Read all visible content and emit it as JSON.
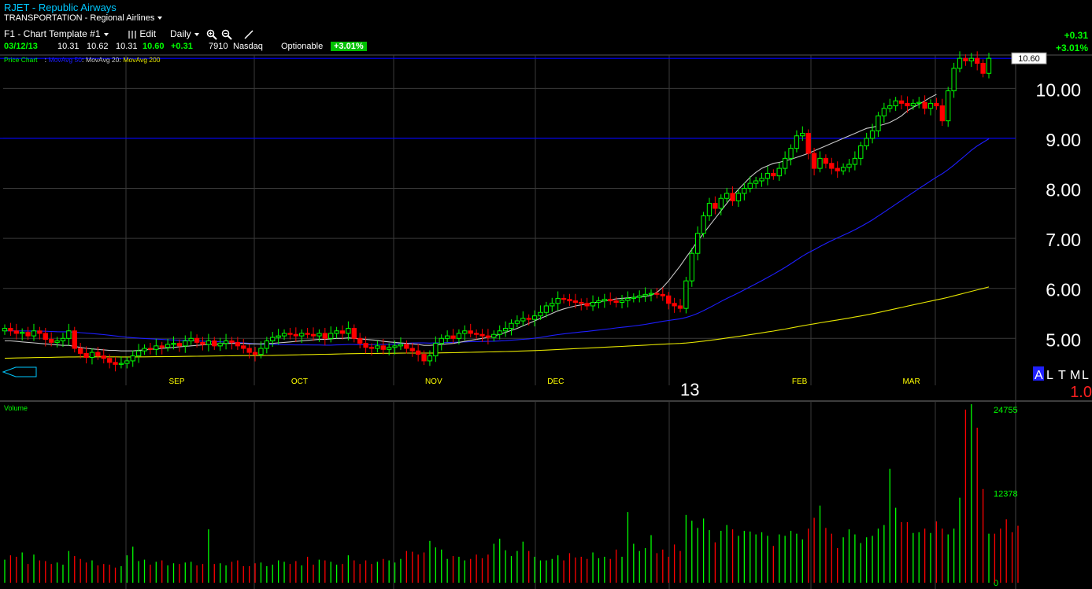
{
  "header": {
    "symbol_title": "RJET - Republic Airways",
    "industry": "TRANSPORTATION - Regional Airlines",
    "template": "F1 - Chart Template #1",
    "edit": "Edit",
    "period": "Daily",
    "change": "+0.31",
    "change_pct": "+3.01%"
  },
  "quote": {
    "date": "03/12/13",
    "open": "10.31",
    "high": "10.62",
    "low": "10.31",
    "close": "10.60",
    "change": "+0.31",
    "volume": "7910",
    "exchange": "Nasdaq",
    "optionable": "Optionable",
    "badge": "+3.01%"
  },
  "colors": {
    "up": "#00ff00",
    "down": "#ff0000",
    "ma50": "#1e1eff",
    "ma20": "#c8c8c8",
    "ma200": "#e6e600",
    "grid": "#3a3a3a",
    "hline": "#0000ff"
  },
  "chart_data": [
    {
      "type": "candlestick",
      "legend": [
        "Price Chart",
        "MovAvg 50",
        "MovAvg 20",
        "MovAvg 200"
      ],
      "ylim": [
        4.25,
        10.65
      ],
      "yticks": [
        "5.00",
        "6.00",
        "7.00",
        "8.00",
        "9.00",
        "10.00"
      ],
      "last_price_label": "10.60",
      "xlabels": [
        {
          "label": "SEP",
          "index": 29
        },
        {
          "label": "OCT",
          "index": 50
        },
        {
          "label": "NOV",
          "index": 73
        },
        {
          "label": "DEC",
          "index": 94
        },
        {
          "label": "13",
          "index": 116
        },
        {
          "label": "FEB",
          "index": 136
        },
        {
          "label": "MAR",
          "index": 155
        }
      ],
      "horizontal_lines": [
        10.6,
        9.0
      ],
      "timeframes": [
        "A",
        "L",
        "T",
        "M",
        "L"
      ],
      "scale_text": "1.0",
      "closes": [
        5.2,
        5.15,
        5.1,
        5.12,
        5.05,
        5.15,
        5.1,
        4.98,
        4.92,
        4.95,
        5.0,
        5.15,
        4.8,
        4.7,
        4.62,
        4.72,
        4.65,
        4.6,
        4.52,
        4.48,
        4.5,
        4.55,
        4.65,
        4.75,
        4.8,
        4.78,
        4.85,
        4.82,
        4.88,
        4.9,
        4.85,
        4.95,
        5.0,
        4.92,
        4.88,
        4.95,
        4.85,
        4.9,
        4.95,
        4.92,
        4.85,
        4.8,
        4.72,
        4.68,
        4.8,
        4.95,
        5.02,
        5.05,
        5.1,
        5.08,
        5.05,
        5.1,
        5.08,
        5.05,
        5.1,
        5.0,
        5.1,
        5.15,
        5.1,
        5.2,
        5.0,
        4.9,
        4.82,
        4.8,
        4.85,
        4.78,
        4.82,
        4.85,
        4.88,
        4.8,
        4.75,
        4.68,
        4.55,
        4.65,
        4.9,
        5.0,
        5.05,
        5.0,
        5.1,
        5.15,
        5.1,
        5.08,
        5.05,
        5.02,
        5.08,
        5.15,
        5.2,
        5.3,
        5.35,
        5.4,
        5.38,
        5.45,
        5.52,
        5.65,
        5.7,
        5.8,
        5.78,
        5.75,
        5.72,
        5.7,
        5.65,
        5.72,
        5.75,
        5.78,
        5.75,
        5.72,
        5.76,
        5.8,
        5.82,
        5.85,
        5.88,
        5.9,
        5.88,
        5.85,
        5.7,
        5.65,
        5.6,
        6.15,
        6.7,
        7.1,
        7.45,
        7.7,
        7.6,
        7.8,
        7.9,
        7.75,
        7.9,
        8.0,
        8.1,
        8.15,
        8.2,
        8.3,
        8.25,
        8.4,
        8.6,
        8.8,
        9.05,
        9.1,
        8.7,
        8.4,
        8.6,
        8.5,
        8.4,
        8.35,
        8.42,
        8.48,
        8.6,
        8.85,
        9.0,
        9.15,
        9.45,
        9.6,
        9.65,
        9.75,
        9.7,
        9.65,
        9.7,
        9.72,
        9.6,
        9.7,
        9.65,
        9.35,
        9.95,
        10.4,
        10.6,
        10.55,
        10.6,
        10.5,
        10.3,
        10.6
      ],
      "ma20": [
        4.95,
        4.95,
        4.94,
        4.93,
        4.92,
        4.91,
        4.9,
        4.89,
        4.88,
        4.87,
        4.86,
        4.86,
        4.84,
        4.82,
        4.8,
        4.79,
        4.78,
        4.77,
        4.76,
        4.76,
        4.75,
        4.75,
        4.75,
        4.76,
        4.77,
        4.78,
        4.79,
        4.8,
        4.81,
        4.82,
        4.83,
        4.84,
        4.85,
        4.86,
        4.87,
        4.88,
        4.88,
        4.89,
        4.9,
        4.9,
        4.9,
        4.9,
        4.89,
        4.89,
        4.89,
        4.9,
        4.9,
        4.91,
        4.92,
        4.93,
        4.94,
        4.95,
        4.96,
        4.97,
        4.98,
        4.98,
        4.99,
        5.0,
        5.0,
        5.01,
        5.0,
        4.99,
        4.98,
        4.97,
        4.96,
        4.94,
        4.93,
        4.92,
        4.91,
        4.9,
        4.89,
        4.88,
        4.86,
        4.86,
        4.87,
        4.88,
        4.89,
        4.9,
        4.92,
        4.94,
        4.96,
        4.98,
        5.0,
        5.02,
        5.05,
        5.08,
        5.12,
        5.16,
        5.2,
        5.25,
        5.3,
        5.35,
        5.4,
        5.45,
        5.5,
        5.55,
        5.59,
        5.62,
        5.65,
        5.67,
        5.69,
        5.71,
        5.73,
        5.75,
        5.77,
        5.79,
        5.8,
        5.81,
        5.82,
        5.83,
        5.84,
        5.86,
        5.92,
        6.02,
        6.15,
        6.3,
        6.45,
        6.62,
        6.78,
        6.95,
        7.1,
        7.25,
        7.4,
        7.55,
        7.7,
        7.85,
        7.98,
        8.1,
        8.22,
        8.32,
        8.4,
        8.45,
        8.5,
        8.52,
        8.55,
        8.58,
        8.62,
        8.66,
        8.7,
        8.75,
        8.8,
        8.85,
        8.9,
        8.95,
        9.0,
        9.05,
        9.1,
        9.15,
        9.2,
        9.22,
        9.25,
        9.28,
        9.32,
        9.38,
        9.45,
        9.55,
        9.62,
        9.68,
        9.75,
        9.82,
        9.88
      ]
    },
    {
      "type": "bar",
      "title": "Volume",
      "ylim": [
        0,
        24755
      ],
      "yticks": [
        "0",
        "12378",
        "24755"
      ],
      "values": [
        3200,
        3800,
        3600,
        4200,
        2600,
        3900,
        3100,
        3000,
        2600,
        2800,
        2500,
        4400,
        3700,
        3300,
        2800,
        3100,
        2400,
        2600,
        2500,
        2100,
        2300,
        3800,
        5000,
        3000,
        3200,
        2500,
        2900,
        3100,
        2400,
        2700,
        2600,
        2800,
        2900,
        2400,
        2600,
        7400,
        2600,
        2700,
        2400,
        2900,
        3100,
        2300,
        2300,
        2700,
        2800,
        2300,
        2500,
        3100,
        2900,
        2600,
        3000,
        2400,
        3600,
        2500,
        3200,
        3100,
        2900,
        2500,
        2600,
        3800,
        3100,
        2600,
        3100,
        2600,
        2900,
        3300,
        3100,
        2800,
        3300,
        4400,
        4300,
        3900,
        4200,
        5800,
        4900,
        4600,
        3300,
        3700,
        3600,
        3100,
        3300,
        3900,
        3400,
        3900,
        5400,
        6100,
        4500,
        3700,
        4400,
        5700,
        4400,
        3600,
        3100,
        3100,
        3300,
        3800,
        3100,
        4100,
        3500,
        3600,
        3300,
        4200,
        3400,
        3600,
        3300,
        4600,
        3600,
        9800,
        5400,
        4400,
        4800,
        6600,
        4100,
        4600,
        3600,
        5300,
        4400,
        9400,
        8600,
        7600,
        8900,
        7300,
        5600,
        7200,
        8000,
        7400,
        6500,
        7200,
        7100,
        6700,
        7000,
        6500,
        5100,
        6700,
        6500,
        7200,
        6800,
        6000,
        7500,
        9000,
        10700,
        7600,
        6800,
        4800,
        6300,
        7400,
        6700,
        5500,
        6300,
        6500,
        7500,
        8000,
        15800,
        10400,
        8400,
        8400,
        6900,
        7000,
        7500,
        6900,
        8500,
        7500,
        6700,
        7500,
        11800,
        24000,
        25000,
        21500,
        13000,
        6800,
        6800,
        7500,
        8800,
        7000,
        7900
      ]
    }
  ]
}
